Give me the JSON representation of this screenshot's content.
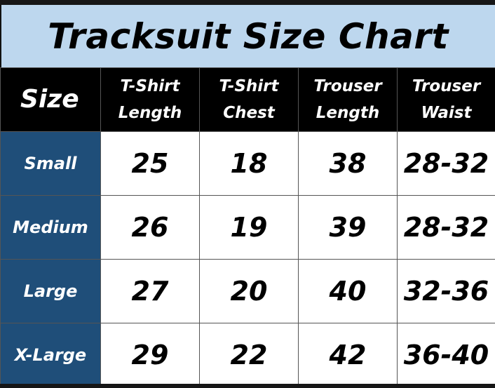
{
  "title": "Tracksuit Size Chart",
  "colors": {
    "title_bg": "#bdd7ee",
    "header_bg": "#000000",
    "size_col_bg": "#1f4e79"
  },
  "headers": [
    {
      "line1": "Size",
      "line2": ""
    },
    {
      "line1": "T-Shirt",
      "line2": "Length"
    },
    {
      "line1": "T-Shirt",
      "line2": "Chest"
    },
    {
      "line1": "Trouser",
      "line2": "Length"
    },
    {
      "line1": "Trouser",
      "line2": "Waist"
    }
  ],
  "rows": [
    [
      "Small",
      "25",
      "18",
      "38",
      "28-32"
    ],
    [
      "Medium",
      "26",
      "19",
      "39",
      "28-32"
    ],
    [
      "Large",
      "27",
      "20",
      "40",
      "32-36"
    ],
    [
      "X-Large",
      "29",
      "22",
      "42",
      "36-40"
    ]
  ]
}
